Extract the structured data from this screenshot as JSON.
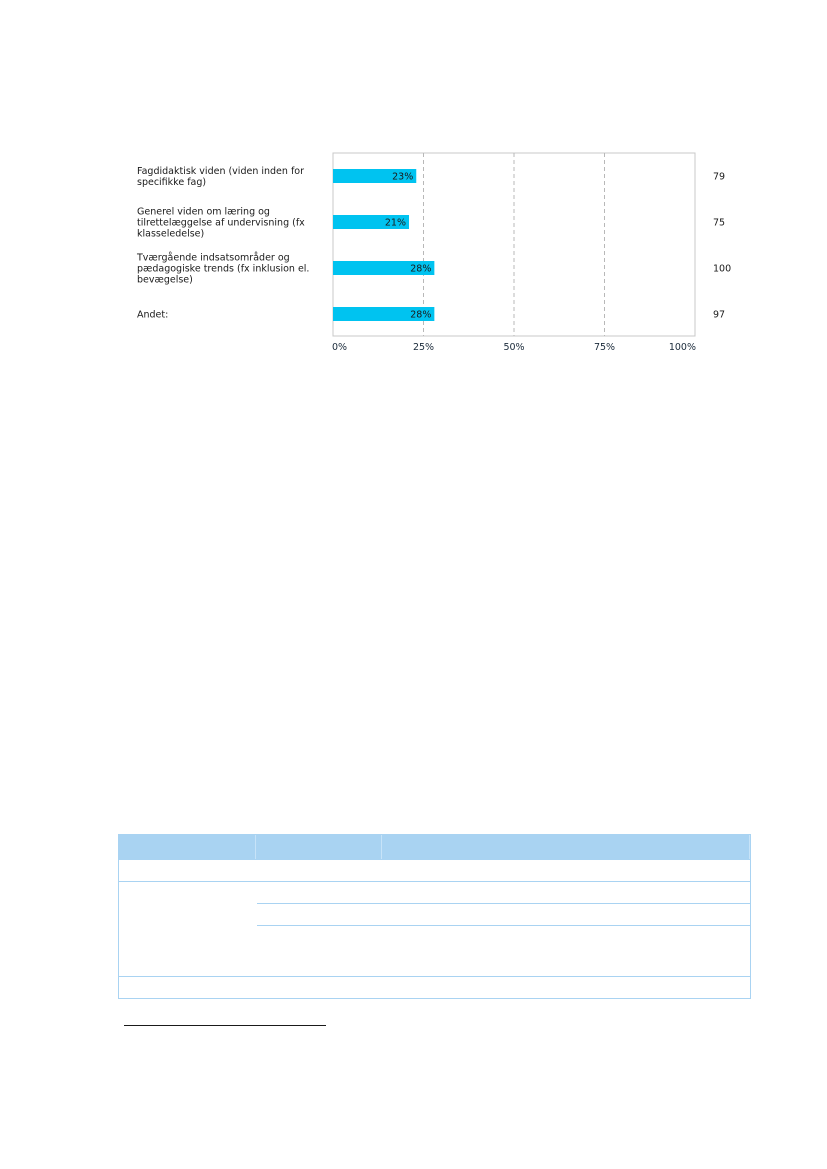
{
  "chart_data": {
    "type": "bar",
    "orientation": "horizontal",
    "categories": [
      [
        "Fagdidaktisk viden (viden inden for",
        "specifikke fag)"
      ],
      [
        "Generel viden om læring og",
        "tilrettelæggelse af undervisning (fx",
        "klasseledelse)"
      ],
      [
        "Tværgående indsatsområder og",
        "pædagogiske trends (fx inklusion el.",
        "bevægelse)"
      ],
      [
        "Andet:"
      ]
    ],
    "values": [
      23,
      21,
      28,
      28
    ],
    "value_labels": [
      "23%",
      "21%",
      "28%",
      "28%"
    ],
    "counts": [
      "79",
      "75",
      "100",
      "97"
    ],
    "xlim": [
      0,
      100
    ],
    "ticks": [
      "0%",
      "25%",
      "50%",
      "75%",
      "100%"
    ],
    "grid": true,
    "bar_color": "#00c3f0",
    "grid_color": "#b8b8b8",
    "axis_color": "#c8c8c8"
  }
}
